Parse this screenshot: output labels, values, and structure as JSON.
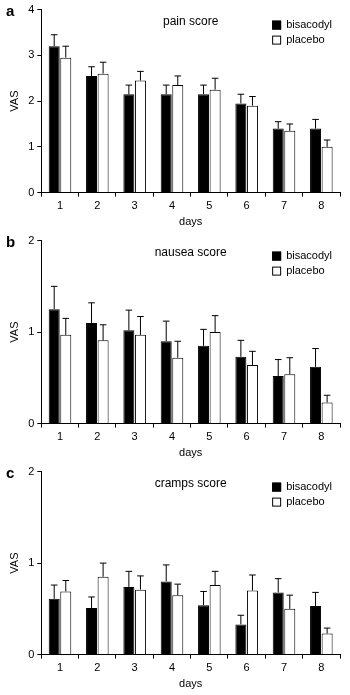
{
  "chart_data": [
    {
      "panel": "a",
      "type": "bar",
      "title": "pain score",
      "x_label": "days",
      "y_label": "VAS",
      "categories": [
        "1",
        "2",
        "3",
        "4",
        "5",
        "6",
        "7",
        "8"
      ],
      "series": [
        {
          "name": "bisacodyl",
          "color": "#000000",
          "values": [
            3.2,
            2.55,
            2.15,
            2.15,
            2.15,
            1.95,
            1.4,
            1.4
          ],
          "errors": [
            0.25,
            0.2,
            0.2,
            0.2,
            0.2,
            0.2,
            0.15,
            0.2
          ]
        },
        {
          "name": "placebo",
          "color": "#ffffff",
          "values": [
            2.95,
            2.6,
            2.45,
            2.35,
            2.25,
            1.9,
            1.35,
            1.0
          ],
          "errors": [
            0.25,
            0.25,
            0.2,
            0.2,
            0.25,
            0.2,
            0.15,
            0.15
          ]
        }
      ],
      "ylim": [
        0,
        4
      ],
      "yticks": [
        0,
        1,
        2,
        3,
        4
      ],
      "grid": false,
      "legend": "upper right"
    },
    {
      "panel": "b",
      "type": "bar",
      "title": "nausea score",
      "x_label": "days",
      "y_label": "VAS",
      "categories": [
        "1",
        "2",
        "3",
        "4",
        "5",
        "6",
        "7",
        "8"
      ],
      "series": [
        {
          "name": "bisacodyl",
          "color": "#000000",
          "values": [
            1.25,
            1.1,
            1.02,
            0.9,
            0.85,
            0.73,
            0.52,
            0.62
          ],
          "errors": [
            0.25,
            0.22,
            0.22,
            0.22,
            0.18,
            0.18,
            0.18,
            0.2
          ]
        },
        {
          "name": "placebo",
          "color": "#ffffff",
          "values": [
            0.97,
            0.91,
            0.97,
            0.72,
            1.0,
            0.64,
            0.54,
            0.23
          ],
          "errors": [
            0.18,
            0.17,
            0.2,
            0.18,
            0.18,
            0.15,
            0.18,
            0.08
          ]
        }
      ],
      "ylim": [
        0,
        2
      ],
      "yticks": [
        0,
        1,
        2
      ],
      "grid": false,
      "legend": "upper right"
    },
    {
      "panel": "c",
      "type": "bar",
      "title": "cramps score",
      "x_label": "days",
      "y_label": "VAS",
      "categories": [
        "1",
        "2",
        "3",
        "4",
        "5",
        "6",
        "7",
        "8"
      ],
      "series": [
        {
          "name": "bisacodyl",
          "color": "#000000",
          "values": [
            0.61,
            0.51,
            0.74,
            0.8,
            0.54,
            0.33,
            0.68,
            0.53
          ],
          "errors": [
            0.15,
            0.12,
            0.17,
            0.18,
            0.15,
            0.1,
            0.15,
            0.15
          ]
        },
        {
          "name": "placebo",
          "color": "#ffffff",
          "values": [
            0.69,
            0.85,
            0.71,
            0.65,
            0.76,
            0.7,
            0.5,
            0.23
          ],
          "errors": [
            0.12,
            0.15,
            0.15,
            0.12,
            0.15,
            0.17,
            0.15,
            0.06
          ]
        }
      ],
      "ylim": [
        0,
        2
      ],
      "yticks": [
        0,
        1,
        2
      ],
      "grid": false,
      "legend": "upper right"
    }
  ]
}
